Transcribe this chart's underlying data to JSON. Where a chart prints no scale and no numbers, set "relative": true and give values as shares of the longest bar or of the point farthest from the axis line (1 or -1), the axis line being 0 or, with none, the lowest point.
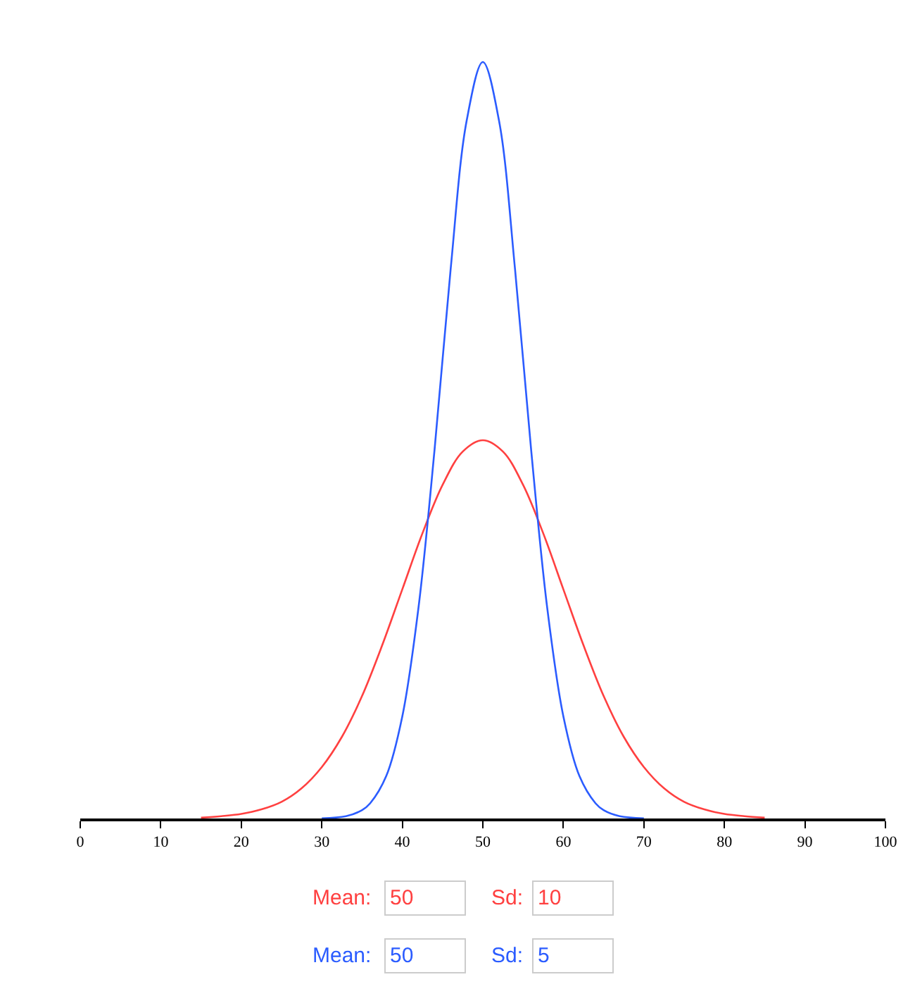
{
  "chart_data": {
    "type": "line",
    "relative": true,
    "xlim": [
      0,
      100
    ],
    "xticks": [
      0,
      10,
      20,
      30,
      40,
      50,
      60,
      70,
      80,
      90,
      100
    ],
    "series": [
      {
        "color": "#ff4040",
        "x": [
          15,
          17.5,
          20,
          22.5,
          25,
          27.5,
          30,
          32.5,
          35,
          37.5,
          40,
          42.5,
          45,
          47.5,
          50,
          52.5,
          55,
          57.5,
          60,
          62.5,
          65,
          67.5,
          70,
          72.5,
          75,
          77.5,
          80,
          82.5,
          85
        ],
        "values": [
          0.001,
          0.003,
          0.006,
          0.012,
          0.022,
          0.04,
          0.068,
          0.108,
          0.162,
          0.229,
          0.303,
          0.377,
          0.441,
          0.485,
          0.5,
          0.485,
          0.441,
          0.377,
          0.303,
          0.229,
          0.162,
          0.108,
          0.068,
          0.04,
          0.022,
          0.012,
          0.006,
          0.003,
          0.001
        ]
      },
      {
        "color": "#2b5cff",
        "x": [
          30,
          33,
          35,
          36,
          38,
          40,
          42,
          44,
          46,
          48,
          50,
          52,
          54,
          56,
          58,
          60,
          62,
          64,
          65,
          67,
          70
        ],
        "values": [
          0.0003,
          0.003,
          0.011,
          0.02,
          0.056,
          0.135,
          0.278,
          0.487,
          0.726,
          0.923,
          1,
          0.923,
          0.726,
          0.487,
          0.278,
          0.135,
          0.056,
          0.02,
          0.011,
          0.003,
          0.0003
        ]
      }
    ],
    "annotations": [
      "Mean:",
      "50",
      "Sd:",
      "10",
      "Mean:",
      "50",
      "Sd:",
      "5"
    ]
  }
}
